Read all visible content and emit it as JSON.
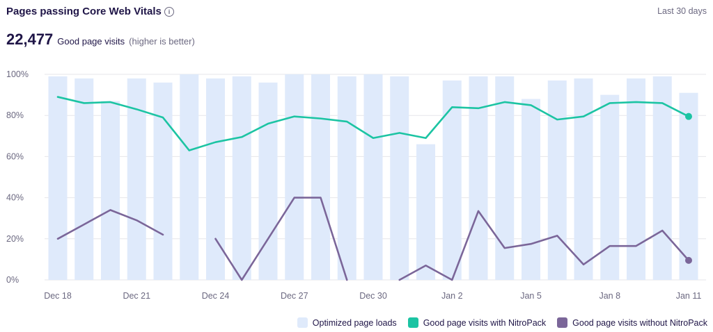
{
  "header": {
    "title": "Pages passing Core Web Vitals",
    "info_icon": "info-icon",
    "period": "Last 30 days"
  },
  "kpi": {
    "value": "22,477",
    "label": "Good page visits",
    "hint": "(higher is better)"
  },
  "colors": {
    "bars": "#dfeafb",
    "with": "#1cc4a3",
    "without": "#7b6699",
    "grid": "#e6e6ea"
  },
  "chart_data": {
    "type": "bar+line",
    "y_ticks": [
      "0%",
      "20%",
      "40%",
      "60%",
      "80%",
      "100%"
    ],
    "ylim": [
      0,
      100
    ],
    "x_labels": [
      "Dec 18",
      "Dec 21",
      "Dec 24",
      "Dec 27",
      "Dec 30",
      "Jan 2",
      "Jan 5",
      "Jan 8",
      "Jan 11"
    ],
    "categories": [
      "Dec 18",
      "Dec 19",
      "Dec 20",
      "Dec 21",
      "Dec 22",
      "Dec 23",
      "Dec 24",
      "Dec 25",
      "Dec 26",
      "Dec 27",
      "Dec 28",
      "Dec 29",
      "Dec 30",
      "Dec 31",
      "Jan 1",
      "Jan 2",
      "Jan 3",
      "Jan 4",
      "Jan 5",
      "Jan 6",
      "Jan 7",
      "Jan 8",
      "Jan 9",
      "Jan 10",
      "Jan 11"
    ],
    "series": [
      {
        "name": "Optimized page loads",
        "type": "bar",
        "values": [
          99,
          98,
          87,
          98,
          96,
          100,
          98,
          99,
          96,
          100,
          100,
          99,
          100,
          99,
          66,
          97,
          99,
          99,
          88,
          97,
          98,
          90,
          98,
          99,
          91
        ]
      },
      {
        "name": "Good page visits with NitroPack",
        "type": "line",
        "values": [
          89,
          86,
          86.5,
          83,
          79,
          63,
          67,
          69.5,
          76,
          79.5,
          78.5,
          77,
          69,
          71.5,
          69,
          84,
          83.5,
          86.5,
          85,
          78,
          79.5,
          86,
          86.5,
          86,
          79.5
        ]
      },
      {
        "name": "Good page visits without NitroPack",
        "type": "line",
        "values": [
          20,
          27,
          34,
          29,
          22,
          null,
          20,
          0,
          20,
          40,
          40,
          0,
          null,
          0,
          7,
          0,
          33.5,
          15.5,
          17.5,
          21.5,
          7.5,
          16.5,
          16.5,
          24,
          9.5
        ]
      }
    ]
  }
}
